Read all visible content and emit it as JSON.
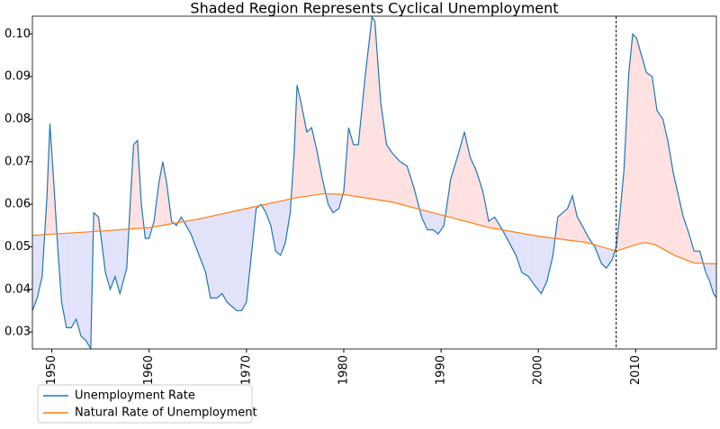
{
  "chart_data": {
    "type": "line",
    "title": "Shaded Region Represents Cyclical Unemployment",
    "xlim": [
      1948,
      2018.3
    ],
    "xticks": [
      1950,
      1960,
      1970,
      1980,
      1990,
      2000,
      2010
    ],
    "ylim": [
      0.026,
      0.1042
    ],
    "yticks": [
      0.03,
      0.04,
      0.05,
      0.06,
      0.07,
      0.08,
      0.09,
      {
        "value": 0.1,
        "label": "0.10"
      }
    ],
    "vline": 2008,
    "shade_above_color": "#ffe1e1",
    "shade_below_color": "#e2e2fa",
    "legend": "lower left outside",
    "series": [
      {
        "name": "Unemployment Rate",
        "color": "#1f77b4",
        "x": [
          1948.0,
          1948.5,
          1949.0,
          1949.5,
          1949.8,
          1950.2,
          1950.6,
          1951.0,
          1951.5,
          1952.0,
          1952.5,
          1953.0,
          1953.5,
          1954.0,
          1954.3,
          1954.8,
          1955.5,
          1956.0,
          1956.5,
          1957.0,
          1957.7,
          1958.0,
          1958.4,
          1958.8,
          1959.2,
          1959.6,
          1960.0,
          1960.5,
          1961.0,
          1961.4,
          1961.8,
          1962.3,
          1962.8,
          1963.3,
          1963.8,
          1964.3,
          1964.8,
          1965.3,
          1965.8,
          1966.3,
          1967.0,
          1967.5,
          1968.0,
          1968.5,
          1969.0,
          1969.5,
          1970.0,
          1970.5,
          1971.0,
          1971.5,
          1972.0,
          1972.5,
          1973.0,
          1973.5,
          1974.0,
          1974.5,
          1974.9,
          1975.2,
          1975.6,
          1976.2,
          1976.7,
          1977.2,
          1977.8,
          1978.4,
          1978.9,
          1979.5,
          1980.0,
          1980.5,
          1981.0,
          1981.5,
          1982.2,
          1982.9,
          1983.2,
          1983.8,
          1984.4,
          1985.0,
          1985.8,
          1986.5,
          1987.2,
          1988.0,
          1988.6,
          1989.2,
          1989.7,
          1990.3,
          1991.0,
          1991.8,
          1992.4,
          1993.0,
          1993.6,
          1994.3,
          1994.9,
          1995.5,
          1996.3,
          1997.0,
          1997.7,
          1998.3,
          1999.0,
          1999.6,
          2000.3,
          2000.9,
          2001.5,
          2002.0,
          2002.5,
          2003.0,
          2003.5,
          2004.0,
          2004.5,
          2005.2,
          2005.8,
          2006.5,
          2007.0,
          2007.6,
          2008.0,
          2008.4,
          2008.8,
          2009.3,
          2009.7,
          2010.1,
          2010.6,
          2011.1,
          2011.7,
          2012.2,
          2012.8,
          2013.3,
          2013.9,
          2014.4,
          2014.9,
          2015.5,
          2016.0,
          2016.6,
          2017.2,
          2017.6,
          2018.0,
          2018.3
        ],
        "values": [
          0.035,
          0.038,
          0.043,
          0.062,
          0.079,
          0.065,
          0.05,
          0.037,
          0.031,
          0.031,
          0.033,
          0.029,
          0.028,
          0.026,
          0.058,
          0.057,
          0.044,
          0.04,
          0.043,
          0.039,
          0.045,
          0.058,
          0.074,
          0.075,
          0.06,
          0.052,
          0.052,
          0.056,
          0.065,
          0.07,
          0.065,
          0.056,
          0.055,
          0.057,
          0.055,
          0.053,
          0.05,
          0.047,
          0.044,
          0.038,
          0.038,
          0.039,
          0.037,
          0.036,
          0.035,
          0.035,
          0.037,
          0.048,
          0.059,
          0.06,
          0.058,
          0.055,
          0.049,
          0.048,
          0.051,
          0.058,
          0.072,
          0.088,
          0.084,
          0.077,
          0.078,
          0.073,
          0.066,
          0.06,
          0.058,
          0.059,
          0.063,
          0.078,
          0.074,
          0.074,
          0.09,
          0.104,
          0.103,
          0.084,
          0.074,
          0.072,
          0.07,
          0.069,
          0.064,
          0.057,
          0.054,
          0.054,
          0.053,
          0.055,
          0.066,
          0.072,
          0.077,
          0.071,
          0.068,
          0.063,
          0.056,
          0.057,
          0.054,
          0.051,
          0.048,
          0.044,
          0.043,
          0.041,
          0.039,
          0.042,
          0.048,
          0.057,
          0.058,
          0.059,
          0.062,
          0.057,
          0.055,
          0.052,
          0.05,
          0.046,
          0.045,
          0.047,
          0.05,
          0.058,
          0.068,
          0.091,
          0.1,
          0.099,
          0.095,
          0.091,
          0.09,
          0.082,
          0.08,
          0.075,
          0.067,
          0.062,
          0.057,
          0.053,
          0.049,
          0.049,
          0.044,
          0.042,
          0.039,
          0.038
        ]
      },
      {
        "name": "Natural Rate of Unemployment",
        "color": "#ff7f0e",
        "x": [
          1948,
          1955,
          1960,
          1965,
          1970,
          1975,
          1978,
          1980,
          1985,
          1990,
          1995,
          2000,
          2005,
          2008,
          2010,
          2011,
          2012,
          2014,
          2016,
          2018.3
        ],
        "values": [
          0.0527,
          0.0537,
          0.0545,
          0.0565,
          0.059,
          0.0615,
          0.0625,
          0.0623,
          0.0605,
          0.0575,
          0.0545,
          0.0525,
          0.051,
          0.049,
          0.0505,
          0.051,
          0.0505,
          0.048,
          0.0462,
          0.046
        ]
      }
    ]
  }
}
